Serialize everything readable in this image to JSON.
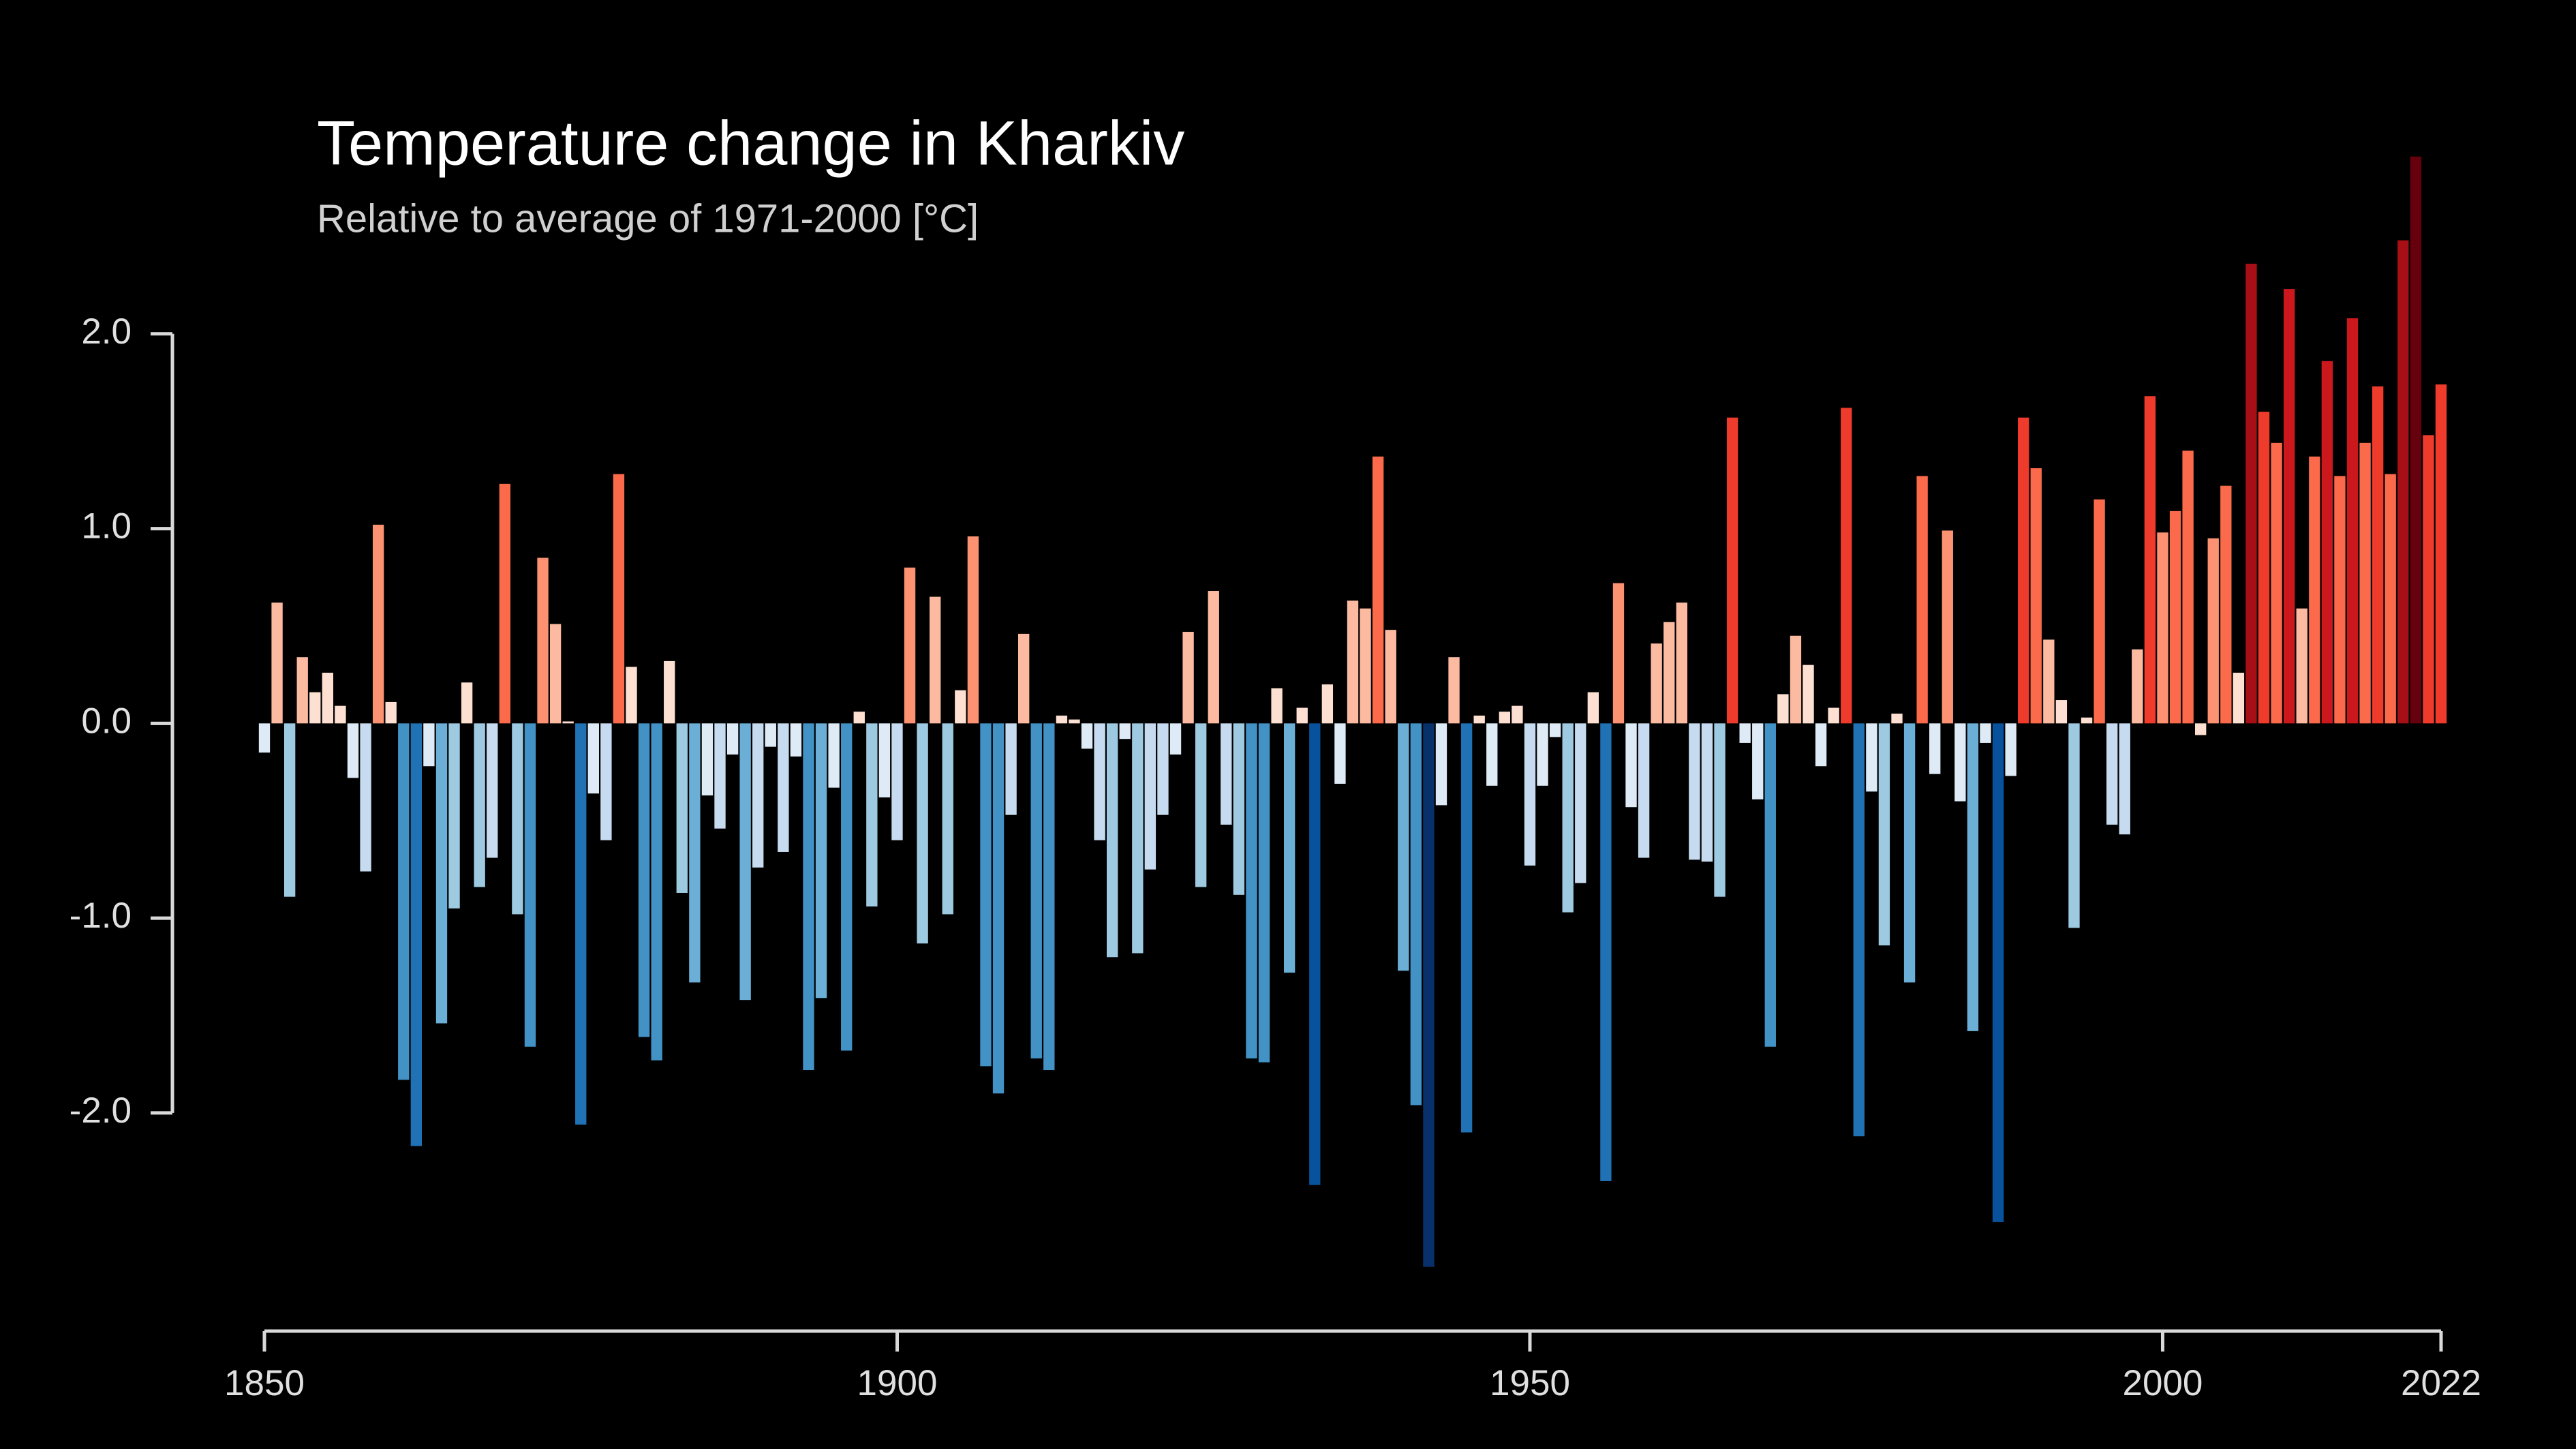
{
  "chart_data": {
    "type": "bar",
    "title": "Temperature change in Kharkiv",
    "subtitle": "Relative to average of 1971-2000  [°C]",
    "x": [
      1850,
      1851,
      1852,
      1853,
      1854,
      1855,
      1856,
      1857,
      1858,
      1859,
      1860,
      1861,
      1862,
      1863,
      1864,
      1865,
      1866,
      1867,
      1868,
      1869,
      1870,
      1871,
      1872,
      1873,
      1874,
      1875,
      1876,
      1877,
      1878,
      1879,
      1880,
      1881,
      1882,
      1883,
      1884,
      1885,
      1886,
      1887,
      1888,
      1889,
      1890,
      1891,
      1892,
      1893,
      1894,
      1895,
      1896,
      1897,
      1898,
      1899,
      1900,
      1901,
      1902,
      1903,
      1904,
      1905,
      1906,
      1907,
      1908,
      1909,
      1910,
      1911,
      1912,
      1913,
      1914,
      1915,
      1916,
      1917,
      1918,
      1919,
      1920,
      1921,
      1922,
      1923,
      1924,
      1925,
      1926,
      1927,
      1928,
      1929,
      1930,
      1931,
      1932,
      1933,
      1934,
      1935,
      1936,
      1937,
      1938,
      1939,
      1940,
      1941,
      1942,
      1943,
      1944,
      1945,
      1946,
      1947,
      1948,
      1949,
      1950,
      1951,
      1952,
      1953,
      1954,
      1955,
      1956,
      1957,
      1958,
      1959,
      1960,
      1961,
      1962,
      1963,
      1964,
      1965,
      1966,
      1967,
      1968,
      1969,
      1970,
      1971,
      1972,
      1973,
      1974,
      1975,
      1976,
      1977,
      1978,
      1979,
      1980,
      1981,
      1982,
      1983,
      1984,
      1985,
      1986,
      1987,
      1988,
      1989,
      1990,
      1991,
      1992,
      1993,
      1994,
      1995,
      1996,
      1997,
      1998,
      1999,
      2000,
      2001,
      2002,
      2003,
      2004,
      2005,
      2006,
      2007,
      2008,
      2009,
      2010,
      2011,
      2012,
      2013,
      2014,
      2015,
      2016,
      2017,
      2018,
      2019,
      2020,
      2021,
      2022
    ],
    "values": [
      -0.15,
      0.62,
      -0.89,
      0.34,
      0.16,
      0.26,
      0.09,
      -0.28,
      -0.76,
      1.02,
      0.11,
      -1.83,
      -2.17,
      -0.22,
      -1.54,
      -0.95,
      0.21,
      -0.84,
      -0.69,
      1.23,
      -0.98,
      -1.66,
      0.85,
      0.51,
      0.01,
      -2.06,
      -0.36,
      -0.6,
      1.28,
      0.29,
      -1.61,
      -1.73,
      0.32,
      -0.87,
      -1.33,
      -0.37,
      -0.54,
      -0.16,
      -1.42,
      -0.74,
      -0.12,
      -0.66,
      -0.17,
      -1.78,
      -1.41,
      -0.33,
      -1.68,
      0.06,
      -0.94,
      -0.38,
      -0.6,
      0.8,
      -1.13,
      0.65,
      -0.98,
      0.17,
      0.96,
      -1.76,
      -1.9,
      -0.47,
      0.46,
      -1.72,
      -1.78,
      0.04,
      0.02,
      -0.13,
      -0.6,
      -1.2,
      -0.08,
      -1.18,
      -0.75,
      -0.47,
      -0.16,
      0.47,
      -0.84,
      0.68,
      -0.52,
      -0.88,
      -1.72,
      -1.74,
      0.18,
      -1.28,
      0.08,
      -2.37,
      0.2,
      -0.31,
      0.63,
      0.59,
      1.37,
      0.48,
      -1.27,
      -1.96,
      -2.79,
      -0.42,
      0.34,
      -2.1,
      0.04,
      -0.32,
      0.06,
      0.09,
      -0.73,
      -0.32,
      -0.07,
      -0.97,
      -0.82,
      0.16,
      -2.35,
      0.72,
      -0.43,
      -0.69,
      0.41,
      0.52,
      0.62,
      -0.7,
      -0.71,
      -0.89,
      1.57,
      -0.1,
      -0.39,
      -1.66,
      0.15,
      0.45,
      0.3,
      -0.22,
      0.08,
      1.62,
      -2.12,
      -0.35,
      -1.14,
      0.05,
      -1.33,
      1.27,
      -0.26,
      0.99,
      -0.4,
      -1.58,
      -0.1,
      -2.56,
      -0.27,
      1.57,
      1.31,
      0.43,
      0.12,
      -1.05,
      0.03,
      1.15,
      -0.52,
      -0.57,
      0.38,
      1.68,
      0.98,
      1.09,
      1.4,
      -0.06,
      0.95,
      1.22,
      0.26,
      2.36,
      1.6,
      1.44,
      2.23,
      0.59,
      1.37,
      1.86,
      1.27,
      2.08,
      1.44,
      1.73,
      1.28,
      2.48,
      2.91,
      1.48,
      1.74
    ],
    "colormap": [
      "#08306b",
      "#08519c",
      "#2171b5",
      "#4292c6",
      "#6baed6",
      "#9ecae1",
      "#c6dbef",
      "#deebf7",
      "#fee0d2",
      "#fcbba1",
      "#fc9272",
      "#fb6a4a",
      "#ef3b2c",
      "#cb181d",
      "#a50f15",
      "#67000d"
    ],
    "xlim": [
      1850,
      2022
    ],
    "xticks": [
      1850,
      1900,
      1950,
      2000,
      2022
    ],
    "ylim": [
      -3.12,
      3.0
    ],
    "yticks": [
      {
        "value": -2,
        "label": "-2.0"
      },
      {
        "value": -1,
        "label": "-1.0"
      },
      {
        "value": 0,
        "label": "0.0"
      },
      {
        "value": 1,
        "label": "1.0"
      },
      {
        "value": 2,
        "label": "2.0"
      }
    ],
    "grid": false
  }
}
